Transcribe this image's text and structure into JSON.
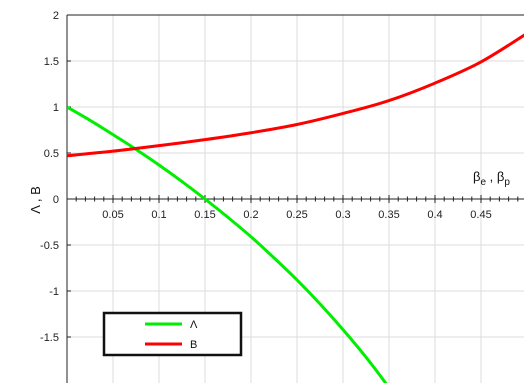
{
  "chart_data": {
    "type": "line",
    "xlabel": "βe , βp",
    "xlabel_parts": {
      "a": "β",
      "a_sub": "e",
      "sep": " , ",
      "b": "β",
      "b_sub": "p"
    },
    "ylabel": "Λ , B",
    "xlim": [
      0,
      0.5
    ],
    "ylim": [
      -2,
      2
    ],
    "xticks": [
      0.05,
      0.1,
      0.15,
      0.2,
      0.25,
      0.3,
      0.35,
      0.4,
      0.45
    ],
    "xtick_labels": [
      "0.05",
      "0.1",
      "0.15",
      "0.2",
      "0.25",
      "0.3",
      "0.35",
      "0.4",
      "0.45"
    ],
    "yticks": [
      2,
      1.5,
      1,
      0.5,
      0,
      -0.5,
      -1,
      -1.5
    ],
    "ytick_labels": [
      "2",
      "1.5",
      "1",
      "0.5",
      "0",
      "-0.5",
      "-1",
      "-1.5"
    ],
    "grid": true,
    "legend_position": "bottom-left",
    "series": [
      {
        "name": "Λ",
        "color": "#00ee00",
        "x": [
          0,
          0.025,
          0.05,
          0.075,
          0.1,
          0.125,
          0.15,
          0.175,
          0.2,
          0.225,
          0.25,
          0.275,
          0.3,
          0.325,
          0.35,
          0.36
        ],
        "y": [
          1.0,
          0.855,
          0.7,
          0.54,
          0.37,
          0.19,
          0.0,
          -0.2,
          -0.41,
          -0.64,
          -0.88,
          -1.14,
          -1.42,
          -1.72,
          -2.05,
          -2.2
        ]
      },
      {
        "name": "B",
        "color": "#ff0000",
        "x": [
          0,
          0.05,
          0.1,
          0.15,
          0.2,
          0.25,
          0.3,
          0.35,
          0.4,
          0.45,
          0.5
        ],
        "y": [
          0.47,
          0.52,
          0.58,
          0.645,
          0.72,
          0.81,
          0.93,
          1.07,
          1.26,
          1.49,
          1.8
        ]
      }
    ]
  }
}
